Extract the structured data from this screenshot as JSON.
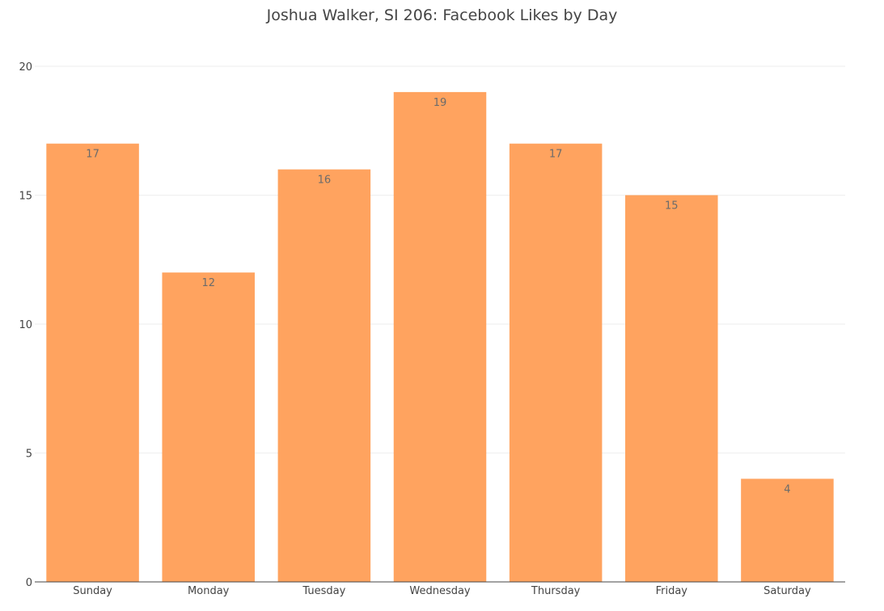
{
  "chart_data": {
    "type": "bar",
    "title": "Joshua Walker, SI 206: Facebook Likes by Day",
    "xlabel": "",
    "ylabel": "",
    "categories": [
      "Sunday",
      "Monday",
      "Tuesday",
      "Wednesday",
      "Thursday",
      "Friday",
      "Saturday"
    ],
    "values": [
      17,
      12,
      16,
      19,
      17,
      15,
      4
    ],
    "ylim": [
      0,
      20
    ],
    "yticks": [
      0,
      5,
      10,
      15,
      20
    ],
    "grid": true,
    "legend": "none",
    "bar_color": "#FFA35F",
    "data_labels": "inside-top"
  }
}
